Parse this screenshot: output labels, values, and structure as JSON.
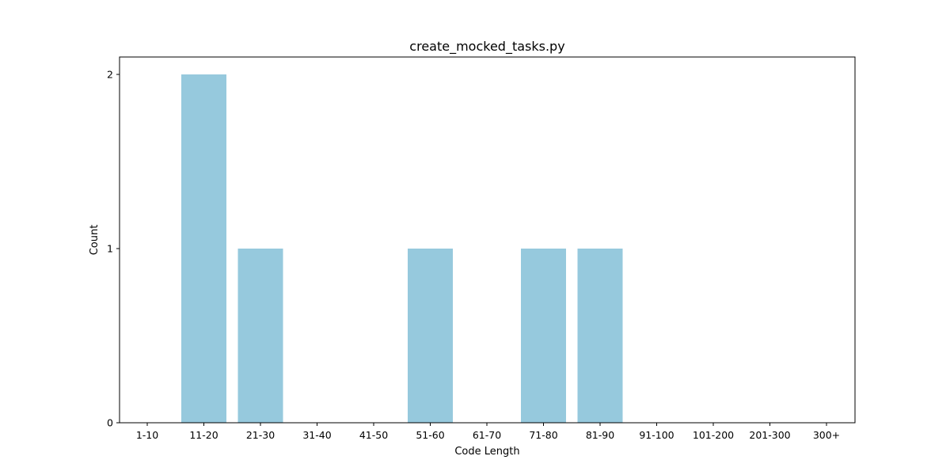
{
  "chart_data": {
    "type": "bar",
    "title": "create_mocked_tasks.py",
    "xlabel": "Code Length",
    "ylabel": "Count",
    "categories": [
      "1-10",
      "11-20",
      "21-30",
      "31-40",
      "41-50",
      "51-60",
      "61-70",
      "71-80",
      "81-90",
      "91-100",
      "101-200",
      "201-300",
      "300+"
    ],
    "values": [
      0,
      2,
      1,
      0,
      0,
      1,
      0,
      1,
      1,
      0,
      0,
      0,
      0
    ],
    "ylim": [
      0,
      2.1
    ],
    "yticks": [
      0,
      1,
      2
    ],
    "bar_color": "#96c9dd",
    "grid": false,
    "legend": "none"
  }
}
